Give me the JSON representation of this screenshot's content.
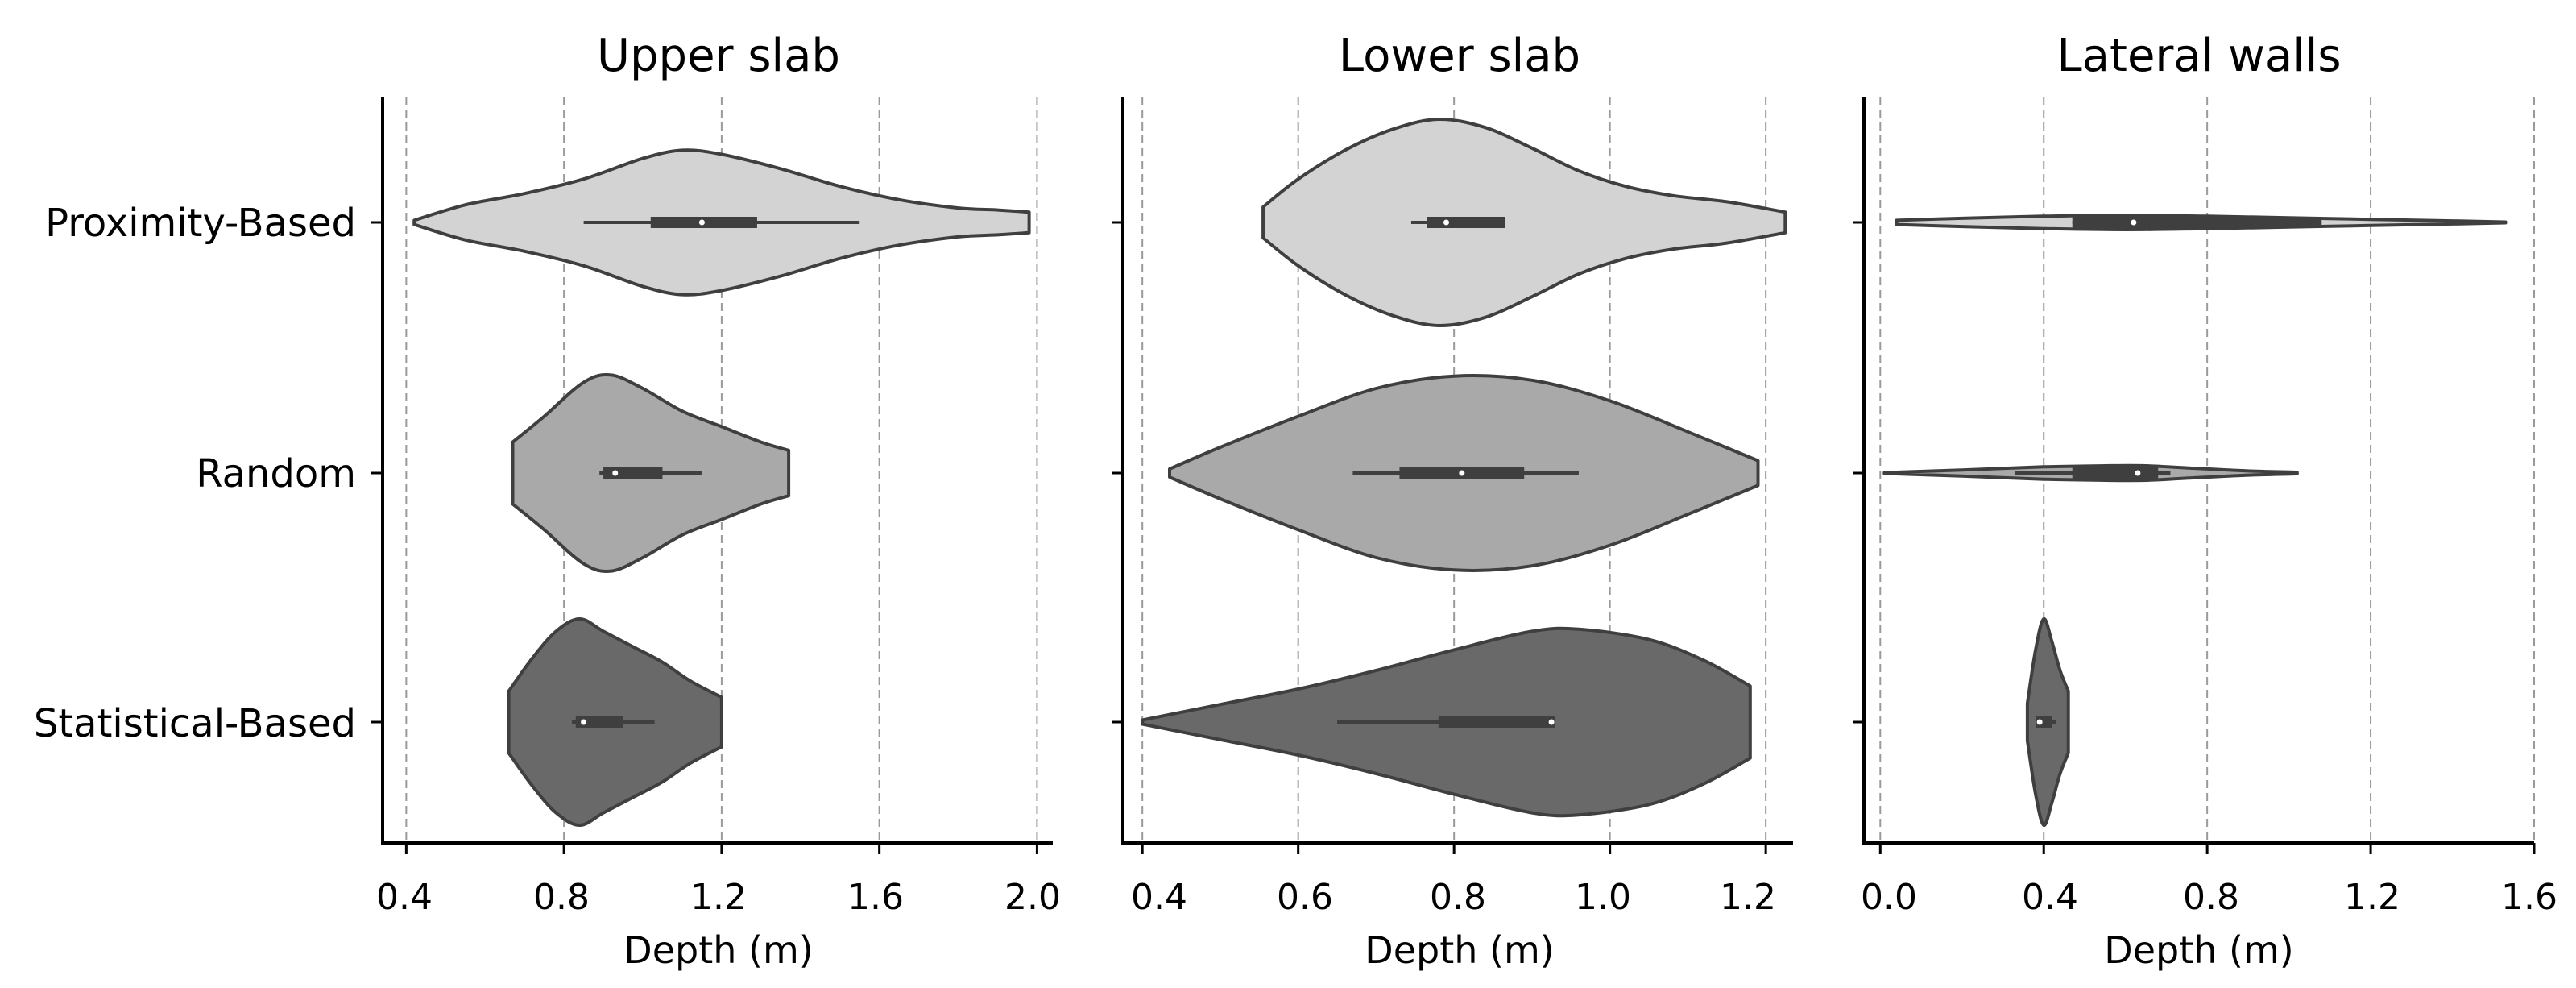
{
  "chart_data": [
    {
      "type": "violin",
      "title": "Upper slab",
      "xlabel": "Depth (m)",
      "xlim": [
        0.34,
        2.04
      ],
      "xticks": [
        0.4,
        0.8,
        1.2,
        1.6,
        2.0
      ],
      "xtick_labels": [
        "0.4",
        "0.8",
        "1.2",
        "1.6",
        "2.0"
      ],
      "grid": "vertical dashed",
      "categories": [
        "Proximity-Based",
        "Random",
        "Statistical-Based"
      ],
      "colors": [
        "#d3d3d3",
        "#a9a9a9",
        "#696969"
      ],
      "series": [
        {
          "name": "Proximity-Based",
          "min": 0.42,
          "max": 1.98,
          "q1": 1.02,
          "median": 1.15,
          "q3": 1.29,
          "whisker_low": 0.85,
          "whisker_high": 1.55,
          "profile": [
            [
              0.42,
              0.02
            ],
            [
              0.55,
              0.17
            ],
            [
              0.7,
              0.28
            ],
            [
              0.85,
              0.42
            ],
            [
              1.0,
              0.62
            ],
            [
              1.1,
              0.7
            ],
            [
              1.2,
              0.66
            ],
            [
              1.35,
              0.52
            ],
            [
              1.5,
              0.35
            ],
            [
              1.65,
              0.22
            ],
            [
              1.8,
              0.14
            ],
            [
              1.9,
              0.12
            ],
            [
              1.98,
              0.1
            ]
          ]
        },
        {
          "name": "Random",
          "min": 0.67,
          "max": 1.37,
          "q1": 0.9,
          "median": 0.93,
          "q3": 1.05,
          "whisker_low": 0.89,
          "whisker_high": 1.15,
          "profile": [
            [
              0.67,
              0.3
            ],
            [
              0.75,
              0.55
            ],
            [
              0.85,
              0.88
            ],
            [
              0.92,
              0.95
            ],
            [
              1.0,
              0.82
            ],
            [
              1.1,
              0.6
            ],
            [
              1.2,
              0.45
            ],
            [
              1.3,
              0.3
            ],
            [
              1.37,
              0.22
            ]
          ]
        },
        {
          "name": "Statistical-Based",
          "min": 0.66,
          "max": 1.2,
          "q1": 0.83,
          "median": 0.85,
          "q3": 0.95,
          "whisker_low": 0.82,
          "whisker_high": 1.03,
          "profile": [
            [
              0.66,
              0.3
            ],
            [
              0.72,
              0.62
            ],
            [
              0.78,
              0.88
            ],
            [
              0.84,
              1.0
            ],
            [
              0.9,
              0.88
            ],
            [
              0.98,
              0.72
            ],
            [
              1.05,
              0.58
            ],
            [
              1.12,
              0.4
            ],
            [
              1.2,
              0.24
            ]
          ]
        }
      ]
    },
    {
      "type": "violin",
      "title": "Lower slab",
      "xlabel": "Depth (m)",
      "xlim": [
        0.375,
        1.235
      ],
      "xticks": [
        0.4,
        0.6,
        0.8,
        1.0,
        1.2
      ],
      "xtick_labels": [
        "0.4",
        "0.6",
        "0.8",
        "1.0",
        "1.2"
      ],
      "grid": "vertical dashed",
      "categories": [
        "Proximity-Based",
        "Random",
        "Statistical-Based"
      ],
      "colors": [
        "#d3d3d3",
        "#a9a9a9",
        "#696969"
      ],
      "series": [
        {
          "name": "Proximity-Based",
          "min": 0.555,
          "max": 1.225,
          "q1": 0.765,
          "median": 0.79,
          "q3": 0.865,
          "whisker_low": 0.745,
          "whisker_high": 0.865,
          "profile": [
            [
              0.555,
              0.15
            ],
            [
              0.6,
              0.42
            ],
            [
              0.66,
              0.7
            ],
            [
              0.72,
              0.9
            ],
            [
              0.78,
              1.0
            ],
            [
              0.84,
              0.92
            ],
            [
              0.9,
              0.72
            ],
            [
              0.96,
              0.5
            ],
            [
              1.02,
              0.35
            ],
            [
              1.08,
              0.26
            ],
            [
              1.15,
              0.2
            ],
            [
              1.225,
              0.1
            ]
          ]
        },
        {
          "name": "Random",
          "min": 0.435,
          "max": 1.19,
          "q1": 0.73,
          "median": 0.81,
          "q3": 0.89,
          "whisker_low": 0.67,
          "whisker_high": 0.96,
          "profile": [
            [
              0.435,
              0.04
            ],
            [
              0.5,
              0.25
            ],
            [
              0.6,
              0.55
            ],
            [
              0.7,
              0.82
            ],
            [
              0.8,
              0.94
            ],
            [
              0.9,
              0.9
            ],
            [
              1.0,
              0.7
            ],
            [
              1.1,
              0.4
            ],
            [
              1.19,
              0.12
            ]
          ]
        },
        {
          "name": "Statistical-Based",
          "min": 0.4,
          "max": 1.18,
          "q1": 0.78,
          "median": 0.925,
          "q3": 0.93,
          "whisker_low": 0.65,
          "whisker_high": 0.93,
          "profile": [
            [
              0.4,
              0.02
            ],
            [
              0.5,
              0.17
            ],
            [
              0.6,
              0.32
            ],
            [
              0.7,
              0.5
            ],
            [
              0.8,
              0.7
            ],
            [
              0.9,
              0.88
            ],
            [
              0.96,
              0.9
            ],
            [
              1.05,
              0.8
            ],
            [
              1.12,
              0.6
            ],
            [
              1.18,
              0.35
            ]
          ]
        }
      ]
    },
    {
      "type": "violin",
      "title": "Lateral walls",
      "xlabel": "Depth (m)",
      "xlim": [
        -0.04,
        1.6
      ],
      "xticks": [
        0.0,
        0.4,
        0.8,
        1.2,
        1.6
      ],
      "xtick_labels": [
        "0.0",
        "0.4",
        "0.8",
        "1.2",
        "1.6"
      ],
      "grid": "vertical dashed",
      "categories": [
        "Proximity-Based",
        "Random",
        "Statistical-Based"
      ],
      "colors": [
        "#d3d3d3",
        "#a9a9a9",
        "#696969"
      ],
      "series": [
        {
          "name": "Proximity-Based",
          "min": 0.04,
          "max": 1.53,
          "q1": 0.47,
          "median": 0.62,
          "q3": 1.08,
          "whisker_low": 0.47,
          "whisker_high": 1.08,
          "profile": [
            [
              0.04,
              0.02
            ],
            [
              0.2,
              0.04
            ],
            [
              0.4,
              0.06
            ],
            [
              0.6,
              0.07
            ],
            [
              0.8,
              0.06
            ],
            [
              1.0,
              0.045
            ],
            [
              1.2,
              0.03
            ],
            [
              1.4,
              0.015
            ],
            [
              1.53,
              0.004
            ]
          ]
        },
        {
          "name": "Random",
          "min": 0.01,
          "max": 1.02,
          "q1": 0.47,
          "median": 0.63,
          "q3": 0.68,
          "whisker_low": 0.33,
          "whisker_high": 0.71,
          "profile": [
            [
              0.01,
              0.004
            ],
            [
              0.2,
              0.03
            ],
            [
              0.4,
              0.06
            ],
            [
              0.55,
              0.07
            ],
            [
              0.65,
              0.07
            ],
            [
              0.75,
              0.05
            ],
            [
              0.9,
              0.02
            ],
            [
              1.02,
              0.008
            ]
          ]
        },
        {
          "name": "Statistical-Based",
          "min": 0.36,
          "max": 0.46,
          "q1": 0.38,
          "median": 0.39,
          "q3": 0.42,
          "whisker_low": 0.38,
          "whisker_high": 0.43,
          "profile": [
            [
              0.36,
              0.18
            ],
            [
              0.38,
              0.7
            ],
            [
              0.4,
              1.0
            ],
            [
              0.42,
              0.78
            ],
            [
              0.44,
              0.5
            ],
            [
              0.46,
              0.3
            ]
          ]
        }
      ]
    }
  ]
}
